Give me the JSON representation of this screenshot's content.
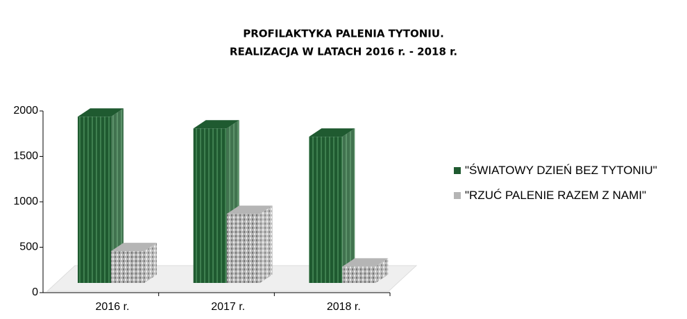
{
  "chart_data": {
    "type": "bar3d",
    "title": "PROFILAKTYKA PALENIA TYTONIU.",
    "subtitle": "REALIZACJA W LATACH 2016 r. - 2018 r.",
    "categories": [
      "2016 r.",
      "2017 r.",
      "2018 r."
    ],
    "series": [
      {
        "name": "\"ŚWIATOWY DZIEŃ BEZ TYTONIU\"",
        "color": "#1f5a30",
        "values": [
          1830,
          1700,
          1610
        ]
      },
      {
        "name": "\"RZUĆ PALENIE RAZEM Z NAMI\"",
        "color": "#b5b5b5",
        "values": [
          350,
          760,
          180
        ]
      }
    ],
    "ylim": [
      0,
      2000
    ],
    "yticks": [
      0,
      500,
      1000,
      1500,
      2000
    ],
    "legend": "right"
  }
}
